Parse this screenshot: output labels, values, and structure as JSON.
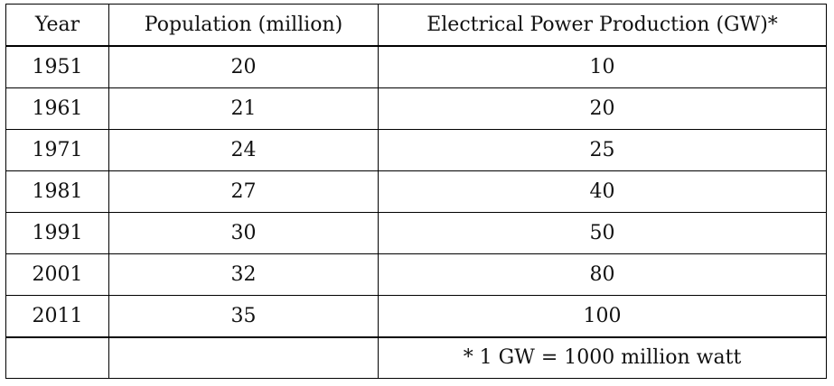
{
  "table": {
    "headers": [
      "Year",
      "Population (million)",
      "Electrical Power Production (GW)*"
    ],
    "rows": [
      [
        "1951",
        "20",
        "10"
      ],
      [
        "1961",
        "21",
        "20"
      ],
      [
        "1971",
        "24",
        "25"
      ],
      [
        "1981",
        "27",
        "40"
      ],
      [
        "1991",
        "30",
        "50"
      ],
      [
        "2001",
        "32",
        "80"
      ],
      [
        "2011",
        "35",
        "100"
      ]
    ],
    "footnote": [
      "",
      "",
      "* 1 GW = 1000 million watt"
    ]
  }
}
